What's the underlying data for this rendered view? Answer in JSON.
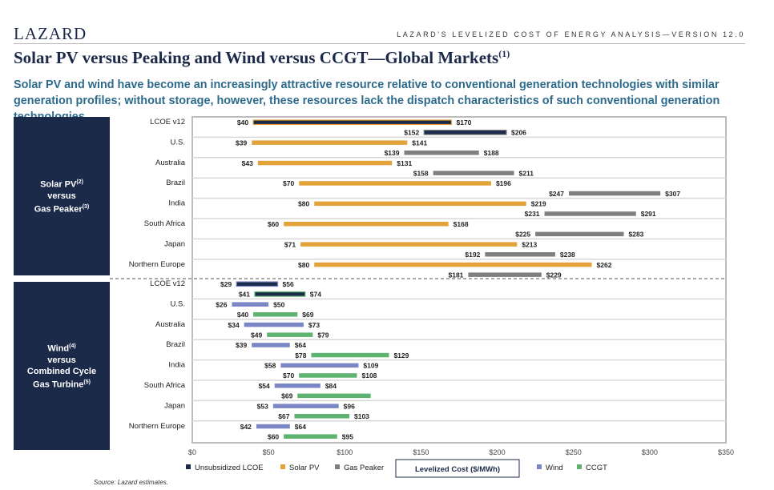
{
  "header": {
    "logo": "LAZARD",
    "series_label": "LAZARD'S LEVELIZED COST OF ENERGY ANALYSIS—VERSION 12.0",
    "title": "Solar PV versus Peaking and Wind versus CCGT—Global Markets",
    "title_footnote": "(1)",
    "subtitle": "Solar PV and wind have become an increasingly attractive resource relative to conventional generation technologies with similar generation profiles; without storage, however, these resources lack the dispatch characteristics of such conventional generation technologies"
  },
  "panels": {
    "solar": {
      "line1": "Solar PV",
      "fn1": "(2)",
      "line2": "versus",
      "line3": "Gas Peaker",
      "fn3": "(3)"
    },
    "wind": {
      "line1": "Wind",
      "fn1": "(4)",
      "line2": "versus",
      "line3": "Combined Cycle",
      "line4": "Gas Turbine",
      "fn4": "(5)"
    }
  },
  "footer": {
    "source": "Source: Lazard estimates."
  },
  "colors": {
    "lcoe": "#1c2a4a",
    "solar": "#e3a33a",
    "gas_peaker": "#7f7f7f",
    "wind": "#7b86c4",
    "ccgt": "#5db36f"
  },
  "chart_data": {
    "type": "range-bar",
    "xlabel": "Levelized Cost ($/MWh)",
    "xlim": [
      0,
      350
    ],
    "xticks": [
      "$0",
      "$50",
      "$100",
      "$150",
      "$200",
      "$250",
      "$300",
      "$350"
    ],
    "legend": [
      {
        "key": "lcoe",
        "label": "Unsubsidized LCOE"
      },
      {
        "key": "solar",
        "label": "Solar PV"
      },
      {
        "key": "gas_peaker",
        "label": "Gas Peaker"
      },
      {
        "key": "wind",
        "label": "Wind"
      },
      {
        "key": "ccgt",
        "label": "CCGT"
      }
    ],
    "sections": [
      {
        "name": "Solar PV versus Gas Peaker",
        "rows": [
          {
            "label": "LCOE v12",
            "bars": [
              {
                "series": "lcoe",
                "low": 40,
                "high": 170,
                "low_label": "$40",
                "high_label": "$170",
                "fill": "#1c2a4a",
                "outline": "#e3a33a"
              },
              {
                "series": "lcoe",
                "low": 152,
                "high": 206,
                "low_label": "$152",
                "high_label": "$206",
                "fill": "#1c2a4a",
                "outline": "#7f7f7f"
              }
            ]
          },
          {
            "label": "U.S.",
            "bars": [
              {
                "series": "solar",
                "low": 39,
                "high": 141,
                "low_label": "$39",
                "high_label": "$141"
              },
              {
                "series": "gas_peaker",
                "low": 139,
                "high": 188,
                "low_label": "$139",
                "high_label": "$188"
              }
            ]
          },
          {
            "label": "Australia",
            "bars": [
              {
                "series": "solar",
                "low": 43,
                "high": 131,
                "low_label": "$43",
                "high_label": "$131"
              },
              {
                "series": "gas_peaker",
                "low": 158,
                "high": 211,
                "low_label": "$158",
                "high_label": "$211"
              }
            ]
          },
          {
            "label": "Brazil",
            "bars": [
              {
                "series": "solar",
                "low": 70,
                "high": 196,
                "low_label": "$70",
                "high_label": "$196"
              },
              {
                "series": "gas_peaker",
                "low": 247,
                "high": 307,
                "low_label": "$247",
                "high_label": "$307"
              }
            ]
          },
          {
            "label": "India",
            "bars": [
              {
                "series": "solar",
                "low": 80,
                "high": 219,
                "low_label": "$80",
                "high_label": "$219"
              },
              {
                "series": "gas_peaker",
                "low": 231,
                "high": 291,
                "low_label": "$231",
                "high_label": "$291"
              }
            ]
          },
          {
            "label": "South Africa",
            "bars": [
              {
                "series": "solar",
                "low": 60,
                "high": 168,
                "low_label": "$60",
                "high_label": "$168"
              },
              {
                "series": "gas_peaker",
                "low": 225,
                "high": 283,
                "low_label": "$225",
                "high_label": "$283"
              }
            ]
          },
          {
            "label": "Japan",
            "bars": [
              {
                "series": "solar",
                "low": 71,
                "high": 213,
                "low_label": "$71",
                "high_label": "$213"
              },
              {
                "series": "gas_peaker",
                "low": 192,
                "high": 238,
                "low_label": "$192",
                "high_label": "$238"
              }
            ]
          },
          {
            "label": "Northern Europe",
            "bars": [
              {
                "series": "solar",
                "low": 80,
                "high": 262,
                "low_label": "$80",
                "high_label": "$262"
              },
              {
                "series": "gas_peaker",
                "low": 181,
                "high": 229,
                "low_label": "$181",
                "high_label": "$229"
              }
            ]
          }
        ]
      },
      {
        "name": "Wind versus Combined Cycle Gas Turbine",
        "rows": [
          {
            "label": "LCOE v12",
            "bars": [
              {
                "series": "lcoe",
                "low": 29,
                "high": 56,
                "low_label": "$29",
                "high_label": "$56",
                "fill": "#1c2a4a",
                "outline": "#7b86c4"
              },
              {
                "series": "lcoe",
                "low": 41,
                "high": 74,
                "low_label": "$41",
                "high_label": "$74",
                "fill": "#1c2a4a",
                "outline": "#5db36f"
              }
            ]
          },
          {
            "label": "U.S.",
            "bars": [
              {
                "series": "wind",
                "low": 26,
                "high": 50,
                "low_label": "$26",
                "high_label": "$50"
              },
              {
                "series": "ccgt",
                "low": 40,
                "high": 69,
                "low_label": "$40",
                "high_label": "$69"
              }
            ]
          },
          {
            "label": "Australia",
            "bars": [
              {
                "series": "wind",
                "low": 34,
                "high": 73,
                "low_label": "$34",
                "high_label": "$73"
              },
              {
                "series": "ccgt",
                "low": 49,
                "high": 79,
                "low_label": "$49",
                "high_label": "$79"
              }
            ]
          },
          {
            "label": "Brazil",
            "bars": [
              {
                "series": "wind",
                "low": 39,
                "high": 64,
                "low_label": "$39",
                "high_label": "$64"
              },
              {
                "series": "ccgt",
                "low": 78,
                "high": 129,
                "low_label": "$78",
                "high_label": "$129"
              }
            ]
          },
          {
            "label": "India",
            "bars": [
              {
                "series": "wind",
                "low": 58,
                "high": 109,
                "low_label": "$58",
                "high_label": "$109"
              },
              {
                "series": "ccgt",
                "low": 70,
                "high": 108,
                "low_label": "$70",
                "high_label": "$108"
              }
            ]
          },
          {
            "label": "South Africa",
            "bars": [
              {
                "series": "wind",
                "low": 54,
                "high": 84,
                "low_label": "$54",
                "high_label": "$84"
              },
              {
                "series": "ccgt",
                "low": 69,
                "high": 117,
                "low_label": "$69",
                "high_label": ""
              }
            ]
          },
          {
            "label": "Japan",
            "bars": [
              {
                "series": "wind",
                "low": 53,
                "high": 96,
                "low_label": "$53",
                "high_label": "$96"
              },
              {
                "series": "ccgt",
                "low": 67,
                "high": 103,
                "low_label": "$67",
                "high_label": "$103"
              }
            ]
          },
          {
            "label": "Northern Europe",
            "bars": [
              {
                "series": "wind",
                "low": 42,
                "high": 64,
                "low_label": "$42",
                "high_label": "$64"
              },
              {
                "series": "ccgt",
                "low": 60,
                "high": 95,
                "low_label": "$60",
                "high_label": "$95"
              }
            ]
          }
        ]
      }
    ]
  }
}
